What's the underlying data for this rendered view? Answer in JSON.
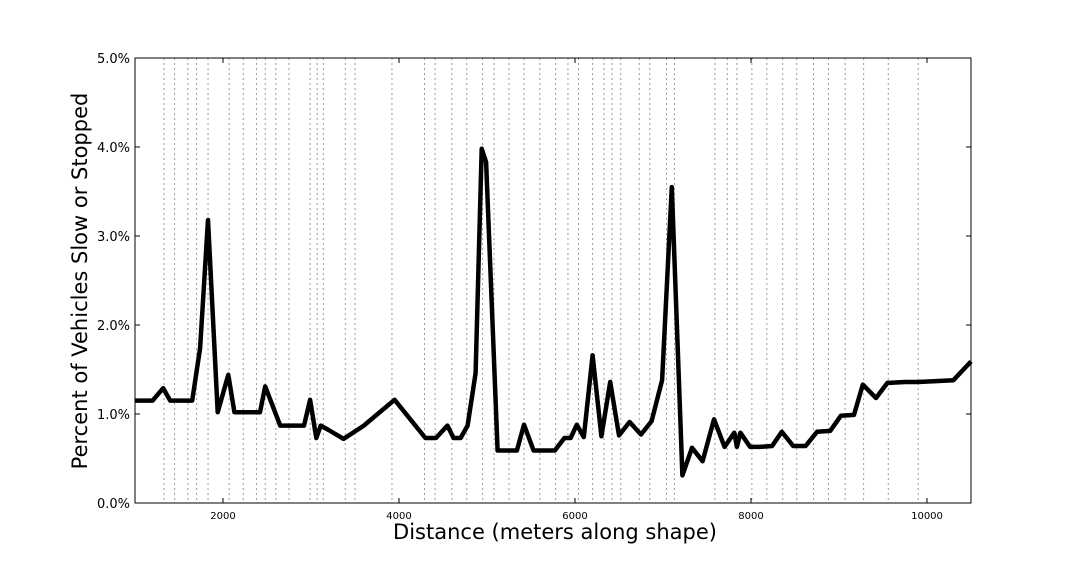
{
  "chart_data": {
    "type": "line",
    "title": "",
    "xlabel": "Distance (meters along shape)",
    "ylabel": "Percent of Vehicles Slow or Stopped",
    "xlim": [
      1000,
      10500
    ],
    "ylim": [
      0,
      0.05
    ],
    "x_ticks": [
      2000,
      4000,
      6000,
      8000,
      10000
    ],
    "x_tick_labels": [
      "2000",
      "4000",
      "6000",
      "8000",
      "10000"
    ],
    "y_ticks": [
      0,
      0.01,
      0.02,
      0.03,
      0.04,
      0.05
    ],
    "y_tick_labels": [
      "0.0%",
      "1.0%",
      "2.0%",
      "3.0%",
      "4.0%",
      "5.0%"
    ],
    "grid": "vertical dotted lines at stop locations",
    "vertical_markers": [
      1330,
      1450,
      1600,
      1700,
      1830,
      2070,
      2230,
      2380,
      2480,
      2600,
      2750,
      2990,
      3070,
      3140,
      3390,
      3500,
      3920,
      4290,
      4410,
      4600,
      4770,
      4950,
      5080,
      5250,
      5420,
      5600,
      5780,
      5920,
      6040,
      6200,
      6330,
      6420,
      6520,
      6730,
      6850,
      7040,
      7130,
      7590,
      7730,
      7840,
      8010,
      8180,
      8360,
      8520,
      8710,
      8880,
      9070,
      9280,
      9560,
      9900
    ],
    "series": [
      {
        "color": "#000000",
        "x": [
          1000,
          1200,
          1320,
          1400,
          1500,
          1650,
          1740,
          1830,
          1940,
          2060,
          2130,
          2200,
          2300,
          2420,
          2480,
          2650,
          2750,
          2920,
          2990,
          3060,
          3110,
          3200,
          3370,
          3600,
          3950,
          4300,
          4420,
          4550,
          4620,
          4700,
          4780,
          4870,
          4940,
          4990,
          5120,
          5200,
          5340,
          5420,
          5530,
          5650,
          5770,
          5880,
          5950,
          6020,
          6100,
          6200,
          6300,
          6400,
          6500,
          6620,
          6750,
          6870,
          6990,
          7100,
          7220,
          7330,
          7450,
          7580,
          7700,
          7810,
          7840,
          7880,
          7990,
          8100,
          8240,
          8350,
          8480,
          8620,
          8750,
          8900,
          9020,
          9170,
          9270,
          9420,
          9550,
          9750,
          9900,
          10100,
          10300,
          10500
        ],
        "y": [
          0.0115,
          0.0115,
          0.0129,
          0.0115,
          0.0115,
          0.0115,
          0.0174,
          0.0318,
          0.0102,
          0.0144,
          0.0102,
          0.0102,
          0.0102,
          0.0102,
          0.0131,
          0.0087,
          0.0087,
          0.0087,
          0.0116,
          0.0073,
          0.0087,
          0.0082,
          0.0072,
          0.0087,
          0.0116,
          0.0073,
          0.0073,
          0.0087,
          0.0073,
          0.0073,
          0.0087,
          0.0146,
          0.0398,
          0.0383,
          0.0059,
          0.0059,
          0.0059,
          0.0088,
          0.0059,
          0.0059,
          0.0059,
          0.0073,
          0.0073,
          0.0088,
          0.0074,
          0.0166,
          0.0075,
          0.0136,
          0.0076,
          0.0091,
          0.0077,
          0.0092,
          0.0138,
          0.0355,
          0.0031,
          0.0062,
          0.0047,
          0.0094,
          0.0063,
          0.0079,
          0.0063,
          0.0079,
          0.0063,
          0.0063,
          0.0064,
          0.008,
          0.0064,
          0.0064,
          0.008,
          0.0081,
          0.0098,
          0.0099,
          0.0133,
          0.0118,
          0.0135,
          0.0136,
          0.0136,
          0.0137,
          0.0138,
          0.0159
        ]
      }
    ]
  }
}
